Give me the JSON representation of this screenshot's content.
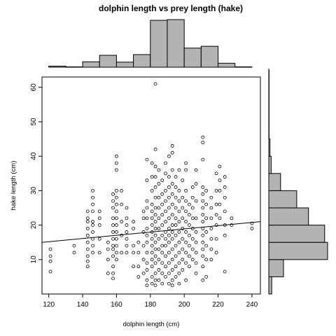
{
  "chart_data": {
    "type": "scatter",
    "title": "dolphin length vs prey length (hake)",
    "xlabel": "dolphin length (cm)",
    "ylabel": "hake length (cm)",
    "xlim": [
      116,
      245
    ],
    "ylim": [
      0,
      63
    ],
    "xticks": [
      120,
      140,
      160,
      180,
      200,
      220,
      240
    ],
    "yticks": [
      10,
      20,
      30,
      40,
      50,
      60
    ],
    "grid": false,
    "marker": "open-circle",
    "colors": {
      "points": "#000000",
      "bars": "#b3b3b3",
      "line": "#000000"
    },
    "trend_line": {
      "x": [
        116,
        245
      ],
      "y": [
        15.0,
        21.0
      ]
    },
    "x_histogram": {
      "bin_edges": [
        120,
        130,
        140,
        150,
        160,
        170,
        180,
        190,
        200,
        210,
        220,
        230,
        240
      ],
      "counts": [
        3,
        1,
        15,
        33,
        14,
        35,
        130,
        132,
        53,
        58,
        11,
        1
      ]
    },
    "y_histogram": {
      "bin_edges": [
        0,
        5,
        10,
        15,
        20,
        25,
        30,
        35,
        40,
        45,
        50,
        55,
        60,
        65
      ],
      "counts": [
        10,
        50,
        200,
        190,
        135,
        95,
        40,
        8,
        4,
        1,
        1,
        1,
        1
      ]
    },
    "series": [
      {
        "values": [
          [
            121,
            6.5
          ],
          [
            121,
            9.5
          ],
          [
            121,
            11
          ],
          [
            121,
            13
          ],
          [
            135,
            12
          ],
          [
            135,
            14
          ],
          [
            143,
            8
          ],
          [
            143,
            9.5
          ],
          [
            143,
            11
          ],
          [
            143,
            13
          ],
          [
            143,
            15
          ],
          [
            143,
            17
          ],
          [
            143,
            19
          ],
          [
            143,
            21
          ],
          [
            143,
            22
          ],
          [
            143,
            24
          ],
          [
            146,
            12
          ],
          [
            146,
            14
          ],
          [
            146,
            16
          ],
          [
            146,
            18
          ],
          [
            146,
            20
          ],
          [
            146,
            21
          ],
          [
            146,
            24
          ],
          [
            146,
            26
          ],
          [
            146,
            28
          ],
          [
            146,
            30
          ],
          [
            150,
            12
          ],
          [
            150,
            16
          ],
          [
            150,
            20
          ],
          [
            150,
            22
          ],
          [
            150,
            24
          ],
          [
            155,
            6
          ],
          [
            155,
            10
          ],
          [
            155,
            13
          ],
          [
            155,
            15
          ],
          [
            158,
            4.5
          ],
          [
            158,
            6
          ],
          [
            158,
            8
          ],
          [
            158,
            11
          ],
          [
            158,
            13
          ],
          [
            158,
            14
          ],
          [
            158,
            16
          ],
          [
            158,
            18
          ],
          [
            158,
            20
          ],
          [
            158,
            22
          ],
          [
            158,
            25
          ],
          [
            158,
            27
          ],
          [
            158,
            29
          ],
          [
            160,
            10
          ],
          [
            160,
            12
          ],
          [
            160,
            14
          ],
          [
            160,
            16
          ],
          [
            160,
            18
          ],
          [
            160,
            20
          ],
          [
            160,
            22
          ],
          [
            160,
            24
          ],
          [
            160,
            26
          ],
          [
            160,
            28
          ],
          [
            160,
            30
          ],
          [
            160,
            36
          ],
          [
            160,
            38
          ],
          [
            160,
            40
          ],
          [
            163,
            12
          ],
          [
            163,
            17
          ],
          [
            163,
            21
          ],
          [
            163,
            26
          ],
          [
            163,
            30
          ],
          [
            166,
            12
          ],
          [
            166,
            14
          ],
          [
            166,
            16
          ],
          [
            166,
            18
          ],
          [
            166,
            20
          ],
          [
            166,
            22
          ],
          [
            166,
            25
          ],
          [
            170,
            8
          ],
          [
            170,
            12
          ],
          [
            170,
            14
          ],
          [
            170,
            19
          ],
          [
            170,
            21
          ],
          [
            173,
            5
          ],
          [
            173,
            8
          ],
          [
            173,
            12
          ],
          [
            173,
            15
          ],
          [
            176,
            6
          ],
          [
            176,
            10
          ],
          [
            176,
            14
          ],
          [
            176,
            18
          ],
          [
            176,
            22
          ],
          [
            176,
            24
          ],
          [
            178,
            2.5
          ],
          [
            178,
            4
          ],
          [
            178,
            7
          ],
          [
            178,
            9
          ],
          [
            178,
            12
          ],
          [
            178,
            15
          ],
          [
            178,
            17
          ],
          [
            178,
            19
          ],
          [
            178,
            22
          ],
          [
            178,
            25
          ],
          [
            178,
            27
          ],
          [
            178,
            33
          ],
          [
            178,
            39
          ],
          [
            181,
            3
          ],
          [
            181,
            5
          ],
          [
            181,
            8
          ],
          [
            181,
            10
          ],
          [
            181,
            12
          ],
          [
            181,
            14
          ],
          [
            181,
            16
          ],
          [
            181,
            18
          ],
          [
            181,
            20
          ],
          [
            181,
            22
          ],
          [
            181,
            24
          ],
          [
            181,
            26
          ],
          [
            181,
            30
          ],
          [
            181,
            34
          ],
          [
            181,
            38
          ],
          [
            183,
            2.5
          ],
          [
            183,
            4
          ],
          [
            183,
            6
          ],
          [
            183,
            9
          ],
          [
            183,
            11
          ],
          [
            183,
            13
          ],
          [
            183,
            15
          ],
          [
            183,
            17
          ],
          [
            183,
            19
          ],
          [
            183,
            21
          ],
          [
            183,
            23
          ],
          [
            183,
            25
          ],
          [
            183,
            28
          ],
          [
            183,
            31
          ],
          [
            183,
            34
          ],
          [
            183,
            37
          ],
          [
            183,
            42
          ],
          [
            183,
            61
          ],
          [
            185,
            4
          ],
          [
            185,
            7
          ],
          [
            185,
            10
          ],
          [
            185,
            13
          ],
          [
            185,
            16
          ],
          [
            185,
            19
          ],
          [
            185,
            22
          ],
          [
            185,
            25
          ],
          [
            185,
            28
          ],
          [
            185,
            32
          ],
          [
            185,
            36
          ],
          [
            187,
            3
          ],
          [
            187,
            6
          ],
          [
            187,
            9
          ],
          [
            187,
            12
          ],
          [
            187,
            14
          ],
          [
            187,
            17
          ],
          [
            187,
            20
          ],
          [
            187,
            23
          ],
          [
            187,
            26
          ],
          [
            187,
            29
          ],
          [
            187,
            33
          ],
          [
            189,
            5
          ],
          [
            189,
            8
          ],
          [
            189,
            11
          ],
          [
            189,
            14
          ],
          [
            189,
            16
          ],
          [
            189,
            18
          ],
          [
            189,
            21
          ],
          [
            189,
            24
          ],
          [
            189,
            27
          ],
          [
            189,
            30
          ],
          [
            189,
            35
          ],
          [
            189,
            38
          ],
          [
            191,
            3
          ],
          [
            191,
            6
          ],
          [
            191,
            9
          ],
          [
            191,
            12
          ],
          [
            191,
            15
          ],
          [
            191,
            17
          ],
          [
            191,
            19
          ],
          [
            191,
            22
          ],
          [
            191,
            25
          ],
          [
            191,
            28
          ],
          [
            191,
            31
          ],
          [
            191,
            34
          ],
          [
            191,
            40
          ],
          [
            193,
            2.5
          ],
          [
            193,
            4
          ],
          [
            193,
            7
          ],
          [
            193,
            10
          ],
          [
            193,
            13
          ],
          [
            193,
            16
          ],
          [
            193,
            18
          ],
          [
            193,
            20
          ],
          [
            193,
            23
          ],
          [
            193,
            26
          ],
          [
            193,
            29
          ],
          [
            193,
            32
          ],
          [
            193,
            36
          ],
          [
            193,
            41
          ],
          [
            193,
            43
          ],
          [
            195,
            5
          ],
          [
            195,
            8
          ],
          [
            195,
            11
          ],
          [
            195,
            14
          ],
          [
            195,
            17
          ],
          [
            195,
            20
          ],
          [
            195,
            22
          ],
          [
            195,
            25
          ],
          [
            195,
            28
          ],
          [
            195,
            31
          ],
          [
            195,
            34
          ],
          [
            197,
            3
          ],
          [
            197,
            6
          ],
          [
            197,
            9
          ],
          [
            197,
            12
          ],
          [
            197,
            15
          ],
          [
            197,
            18
          ],
          [
            197,
            21
          ],
          [
            197,
            24
          ],
          [
            197,
            27
          ],
          [
            197,
            30
          ],
          [
            197,
            36
          ],
          [
            199,
            7
          ],
          [
            199,
            10
          ],
          [
            199,
            13
          ],
          [
            199,
            16
          ],
          [
            199,
            19
          ],
          [
            199,
            22
          ],
          [
            199,
            25
          ],
          [
            199,
            28
          ],
          [
            199,
            33
          ],
          [
            201,
            4
          ],
          [
            201,
            9
          ],
          [
            201,
            12
          ],
          [
            201,
            15
          ],
          [
            201,
            18
          ],
          [
            201,
            21
          ],
          [
            201,
            24
          ],
          [
            201,
            27
          ],
          [
            201,
            30
          ],
          [
            201,
            36
          ],
          [
            201,
            38
          ],
          [
            203,
            8
          ],
          [
            203,
            11
          ],
          [
            203,
            14
          ],
          [
            203,
            17
          ],
          [
            203,
            20
          ],
          [
            203,
            23
          ],
          [
            203,
            26
          ],
          [
            205,
            10
          ],
          [
            205,
            13
          ],
          [
            205,
            16
          ],
          [
            205,
            19
          ],
          [
            205,
            22
          ],
          [
            205,
            25
          ],
          [
            205,
            28
          ],
          [
            205,
            31
          ],
          [
            207,
            6
          ],
          [
            207,
            9
          ],
          [
            207,
            12
          ],
          [
            207,
            15
          ],
          [
            207,
            18
          ],
          [
            207,
            22
          ],
          [
            207,
            27
          ],
          [
            207,
            32
          ],
          [
            207,
            36
          ],
          [
            211,
            4
          ],
          [
            211,
            8
          ],
          [
            211,
            11
          ],
          [
            211,
            13
          ],
          [
            211,
            15
          ],
          [
            211,
            17
          ],
          [
            211,
            19
          ],
          [
            211,
            21
          ],
          [
            211,
            23
          ],
          [
            211,
            25
          ],
          [
            211,
            27
          ],
          [
            211,
            29
          ],
          [
            211,
            31
          ],
          [
            211,
            39
          ],
          [
            211,
            44
          ],
          [
            211,
            45.5
          ],
          [
            213,
            5
          ],
          [
            213,
            10
          ],
          [
            213,
            14
          ],
          [
            213,
            18
          ],
          [
            213,
            22
          ],
          [
            213,
            26
          ],
          [
            213,
            30
          ],
          [
            216,
            10
          ],
          [
            216,
            13
          ],
          [
            216,
            16
          ],
          [
            216,
            19
          ],
          [
            216,
            22
          ],
          [
            216,
            25
          ],
          [
            216,
            28
          ],
          [
            219,
            12
          ],
          [
            219,
            16
          ],
          [
            219,
            20
          ],
          [
            219,
            23
          ],
          [
            219,
            26
          ],
          [
            219,
            30
          ],
          [
            219,
            35
          ],
          [
            221,
            22
          ],
          [
            221,
            26
          ],
          [
            221,
            30
          ],
          [
            221,
            33
          ],
          [
            221,
            37
          ],
          [
            224,
            6.5
          ],
          [
            224,
            17
          ],
          [
            224,
            20
          ],
          [
            224,
            24
          ],
          [
            224,
            28
          ],
          [
            224,
            31
          ],
          [
            224,
            34
          ],
          [
            228,
            20
          ],
          [
            228,
            22
          ],
          [
            240,
            19
          ],
          [
            240,
            20.5
          ]
        ]
      }
    ]
  }
}
